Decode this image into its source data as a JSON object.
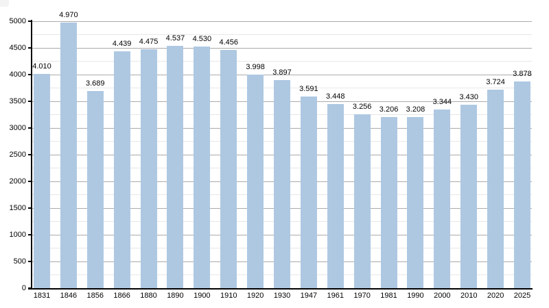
{
  "chart_data": {
    "type": "bar",
    "categories": [
      "1831",
      "1846",
      "1856",
      "1866",
      "1880",
      "1890",
      "1900",
      "1910",
      "1920",
      "1930",
      "1947",
      "1961",
      "1970",
      "1981",
      "1990",
      "2000",
      "2010",
      "2020",
      "2025"
    ],
    "values": [
      4010,
      4970,
      3689,
      4439,
      4475,
      4537,
      4530,
      4456,
      3998,
      3897,
      3591,
      3448,
      3256,
      3206,
      3208,
      3344,
      3430,
      3724,
      3878
    ],
    "value_labels": [
      "4.010",
      "4.970",
      "3.689",
      "4.439",
      "4.475",
      "4.537",
      "4.530",
      "4.456",
      "3.998",
      "3.897",
      "3.591",
      "3.448",
      "3.256",
      "3.206",
      "3.208",
      "3.344",
      "3.430",
      "3.724",
      "3.878"
    ],
    "xlabel": "",
    "ylabel": "",
    "ylim": [
      0,
      5000
    ],
    "y_major_step": 500,
    "y_minor_step": 250,
    "y_tick_labels": [
      "0",
      "500",
      "1000",
      "1500",
      "2000",
      "2500",
      "3000",
      "3500",
      "4000",
      "4500",
      "5000"
    ],
    "grid": "on",
    "legend": "none",
    "colors": {
      "bar_fill": "#aec8e2",
      "major_grid": "#aaaaaa",
      "minor_grid": "#e7e7e7",
      "axis": "#000000",
      "text": "#000000",
      "background": "#ffffff"
    }
  }
}
